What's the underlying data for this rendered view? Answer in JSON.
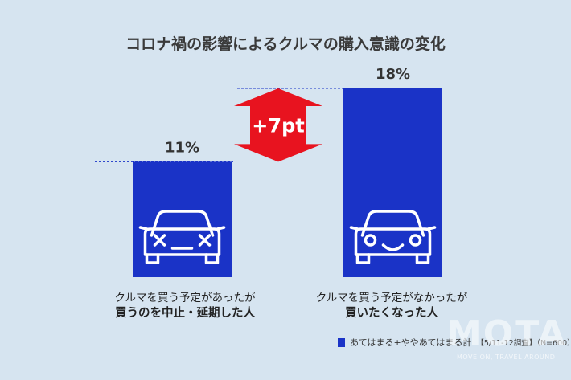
{
  "title": "コロナ禍の影響によるクルマの購入意識の変化",
  "colors": {
    "bar": "#1a33c7",
    "arrow": "#e8131f",
    "background": "#d6e4f0"
  },
  "chart_data": {
    "type": "bar",
    "title": "コロナ禍の影響によるクルマの購入意識の変化",
    "categories": [
      {
        "line1": "クルマを買う予定があったが",
        "line2": "買うのを中止・延期した人",
        "icon": "sad-car-icon"
      },
      {
        "line1": "クルマを買う予定がなかったが",
        "line2": "買いたくなった人",
        "icon": "happy-car-icon"
      }
    ],
    "series": [
      {
        "name": "あてはまる+ややあてはまる計",
        "values": [
          11,
          18
        ],
        "labels": [
          "11%",
          "18%"
        ]
      }
    ],
    "ylim": [
      0,
      18
    ],
    "annotation": "+7pt",
    "legend_position": "bottom-right"
  },
  "legend": {
    "label": "あてはまる+ややあてはまる計",
    "note": "【5/11-12調査】（N=600）"
  },
  "watermark": {
    "logo": "MOTA",
    "tagline": "MOVE ON, TRAVEL AROUND"
  }
}
